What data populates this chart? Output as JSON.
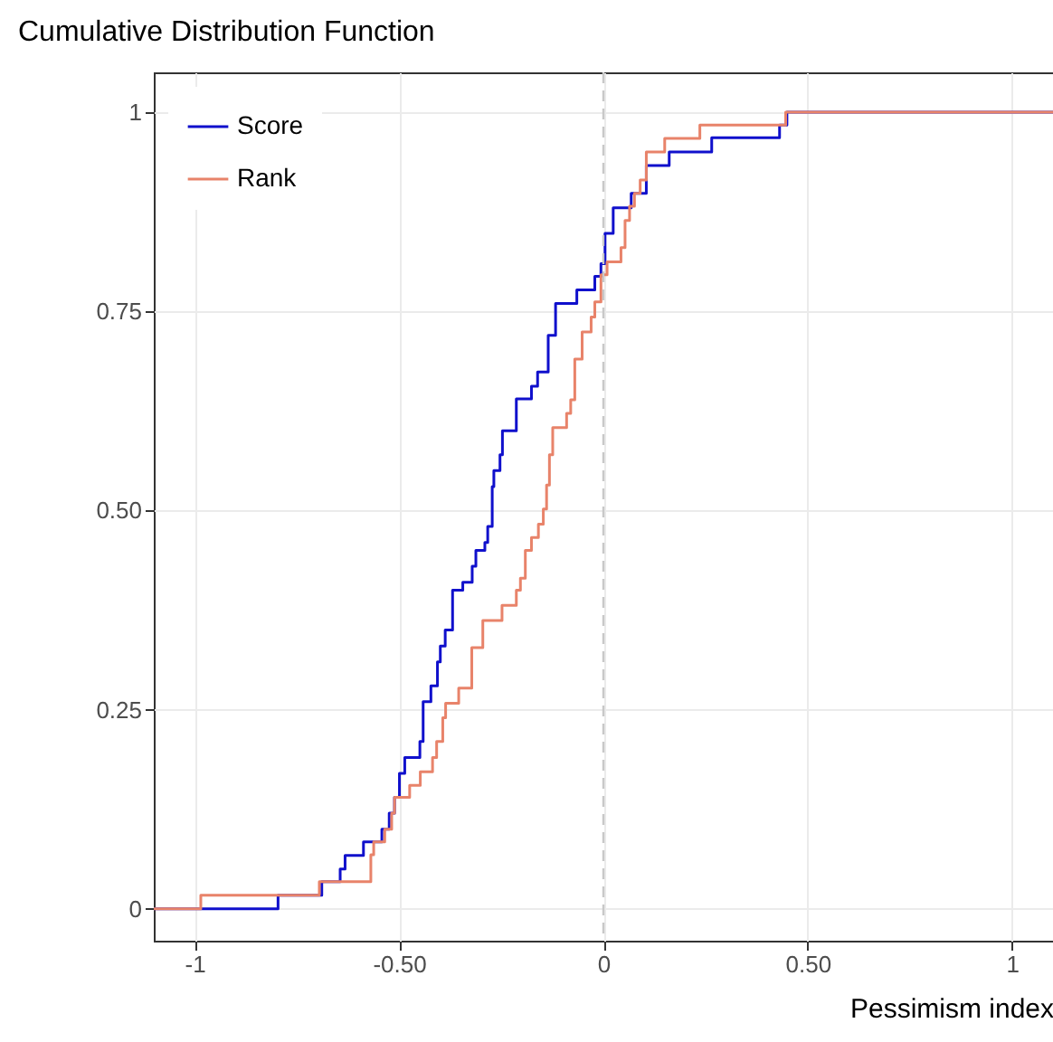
{
  "chart_data": {
    "type": "step",
    "title": "Cumulative Distribution Function",
    "xlabel": "Pessimism index",
    "series": [
      {
        "name": "Score",
        "color": "#1010cc",
        "x": [
          -1.1,
          -0.796,
          -0.689,
          -0.644,
          -0.632,
          -0.587,
          -0.542,
          -0.524,
          -0.511,
          -0.499,
          -0.486,
          -0.449,
          -0.441,
          -0.422,
          -0.406,
          -0.399,
          -0.387,
          -0.369,
          -0.344,
          -0.321,
          -0.312,
          -0.29,
          -0.283,
          -0.272,
          -0.268,
          -0.253,
          -0.247,
          -0.213,
          -0.176,
          -0.161,
          -0.135,
          -0.117,
          -0.065,
          -0.021,
          -0.006,
          0.004,
          0.024,
          0.068,
          0.105,
          0.161,
          0.265,
          0.431,
          0.449,
          1.1
        ],
        "values": [
          0,
          0.017,
          0.034,
          0.05,
          0.067,
          0.084,
          0.1,
          0.12,
          0.14,
          0.17,
          0.19,
          0.21,
          0.26,
          0.28,
          0.31,
          0.33,
          0.35,
          0.4,
          0.41,
          0.43,
          0.45,
          0.46,
          0.48,
          0.53,
          0.55,
          0.57,
          0.6,
          0.64,
          0.656,
          0.674,
          0.72,
          0.76,
          0.777,
          0.794,
          0.81,
          0.848,
          0.88,
          0.898,
          0.933,
          0.95,
          0.968,
          0.984,
          1,
          1
        ]
      },
      {
        "name": "Rank",
        "color": "#e8836a",
        "x": [
          -1.1,
          -0.985,
          -0.695,
          -0.569,
          -0.562,
          -0.535,
          -0.518,
          -0.511,
          -0.474,
          -0.448,
          -0.418,
          -0.408,
          -0.393,
          -0.386,
          -0.354,
          -0.322,
          -0.295,
          -0.248,
          -0.213,
          -0.203,
          -0.191,
          -0.176,
          -0.159,
          -0.147,
          -0.139,
          -0.132,
          -0.124,
          -0.09,
          -0.08,
          -0.07,
          -0.052,
          -0.03,
          -0.021,
          -0.006,
          0.009,
          0.043,
          0.053,
          0.064,
          0.076,
          0.09,
          0.105,
          0.15,
          0.236,
          0.446,
          1.1
        ],
        "values": [
          0,
          0.017,
          0.034,
          0.068,
          0.084,
          0.1,
          0.12,
          0.14,
          0.155,
          0.172,
          0.19,
          0.21,
          0.24,
          0.258,
          0.277,
          0.328,
          0.362,
          0.381,
          0.4,
          0.415,
          0.45,
          0.466,
          0.483,
          0.502,
          0.532,
          0.57,
          0.604,
          0.622,
          0.639,
          0.69,
          0.724,
          0.743,
          0.762,
          0.796,
          0.812,
          0.83,
          0.864,
          0.882,
          0.898,
          0.915,
          0.95,
          0.967,
          0.984,
          1,
          1
        ]
      }
    ],
    "xlim": [
      -1.1,
      1.1
    ],
    "xticks": [
      -1,
      {
        "value": -0.5,
        "label": "-0.50"
      },
      0,
      {
        "value": 0.5,
        "label": "0.50"
      },
      1
    ],
    "ylim": [
      -0.04,
      1.05
    ],
    "yticks": [
      0,
      0.25,
      {
        "value": 0.5,
        "label": "0.50"
      },
      0.75,
      1
    ],
    "ref_lines": [
      {
        "axis": "x",
        "value": 0,
        "color": "#c8c8c8",
        "line_style": "dashed"
      }
    ],
    "grid": true,
    "legend": "top left"
  }
}
